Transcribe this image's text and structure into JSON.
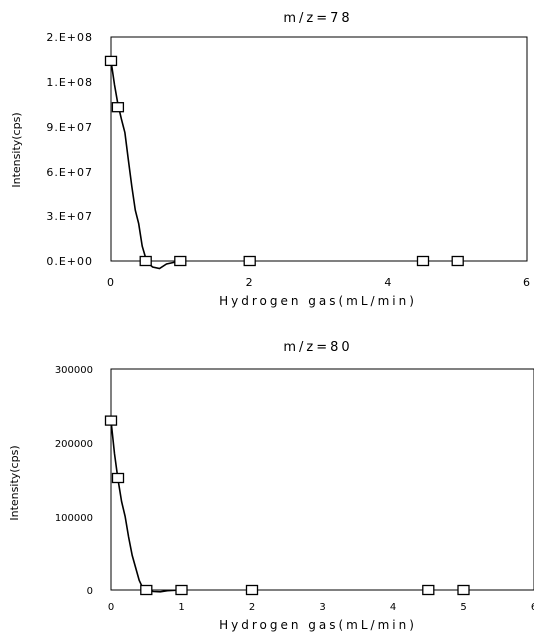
{
  "chart_data": [
    {
      "type": "scatter",
      "title": "m/z=78",
      "xlabel": "Hydrogen gas(mL/min)",
      "ylabel": "Intensity(cps)",
      "xlim": [
        0,
        6
      ],
      "ylim": [
        0,
        150000000
      ],
      "x_ticks": [
        "0",
        "2",
        "4",
        "6"
      ],
      "y_ticks": [
        "0.E+00",
        "3.E+07",
        "6.E+07",
        "9.E+07",
        "1.E+08",
        "2.E+08"
      ],
      "grid": false,
      "series": [
        {
          "markers": {
            "x": [
              0,
              0.1,
              0.5,
              1,
              2,
              4.5,
              5
            ],
            "y": [
              134000000,
              103000000,
              0,
              0,
              0,
              0,
              0
            ]
          },
          "line": {
            "x": [
              0,
              0.05,
              0.1,
              0.15,
              0.2,
              0.25,
              0.3,
              0.35,
              0.4,
              0.45,
              0.5,
              0.55,
              0.6,
              0.7,
              0.8,
              1
            ],
            "y": [
              134000000,
              118000000,
              105000000,
              95000000,
              86000000,
              68000000,
              50000000,
              34000000,
              25000000,
              10000000,
              2000000,
              -2000000,
              -4000000,
              -5000000,
              -2000000,
              0
            ]
          }
        }
      ]
    },
    {
      "type": "scatter",
      "title": "m/z=80",
      "xlabel": "Hydrogen gas(mL/min)",
      "ylabel": "Intensity(cps)",
      "xlim": [
        0,
        6
      ],
      "ylim": [
        0,
        300000
      ],
      "x_ticks": [
        "0",
        "1",
        "2",
        "3",
        "4",
        "5",
        "6"
      ],
      "y_ticks": [
        "0",
        "100000",
        "200000",
        "300000"
      ],
      "grid": false,
      "series": [
        {
          "markers": {
            "x": [
              0,
              0.1,
              0.5,
              1,
              2,
              4.5,
              5
            ],
            "y": [
              230000,
              152000,
              0,
              0,
              0,
              0,
              0
            ]
          },
          "line": {
            "x": [
              0,
              0.05,
              0.1,
              0.15,
              0.2,
              0.25,
              0.3,
              0.35,
              0.4,
              0.45,
              0.5,
              0.55,
              0.6,
              0.7,
              0.8,
              1
            ],
            "y": [
              230000,
              185000,
              150000,
              120000,
              100000,
              72000,
              47000,
              30000,
              13000,
              3000,
              0,
              -1000,
              -2000,
              -2500,
              -1000,
              0
            ]
          }
        }
      ]
    }
  ]
}
